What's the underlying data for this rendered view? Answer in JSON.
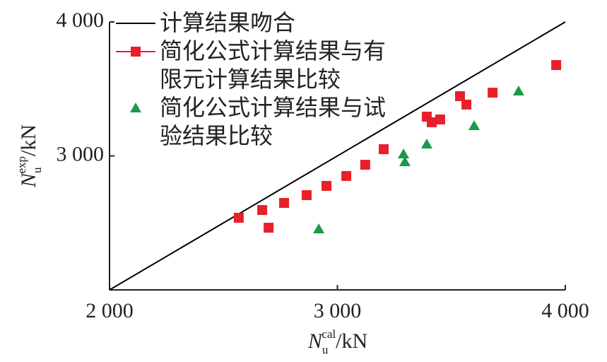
{
  "chart_data": {
    "type": "scatter",
    "xlabel": {
      "symbol": "N",
      "sub": "u",
      "sup": "cal",
      "unit": "/kN"
    },
    "ylabel": {
      "symbol": "N",
      "sub": "u",
      "sup": "exp",
      "unit": "/kN"
    },
    "xlim": [
      2000,
      4000
    ],
    "ylim": [
      2000,
      4000
    ],
    "xticks": [
      {
        "value": 2000,
        "label": "2 000"
      },
      {
        "value": 3000,
        "label": "3 000"
      },
      {
        "value": 4000,
        "label": "4 000"
      }
    ],
    "yticks": [
      {
        "value": 3000,
        "label": "3 000"
      },
      {
        "value": 4000,
        "label": "4 000"
      }
    ],
    "series": [
      {
        "name": "计算结果吻合",
        "type": "line",
        "color": "#000000",
        "x": [
          2000,
          4000
        ],
        "values": [
          2000,
          4000
        ]
      },
      {
        "name": "简化公式计算结果与有限元计算结果比较",
        "type": "scatter",
        "marker": "square",
        "color": "#e8202a",
        "x": [
          2567,
          2670,
          2698,
          2766,
          2865,
          2952,
          3039,
          3122,
          3203,
          3392,
          3414,
          3451,
          3538,
          3566,
          3681,
          3960
        ],
        "values": [
          2538,
          2596,
          2464,
          2649,
          2707,
          2776,
          2850,
          2934,
          3050,
          3293,
          3251,
          3272,
          3446,
          3383,
          3472,
          3678
        ]
      },
      {
        "name": "简化公式计算结果与试验结果比较",
        "type": "scatter",
        "marker": "triangle",
        "color": "#1a9a4a",
        "x": [
          2918,
          3290,
          3296,
          3392,
          3600,
          3795
        ],
        "values": [
          2454,
          3013,
          2955,
          3087,
          3224,
          3483
        ]
      }
    ]
  }
}
